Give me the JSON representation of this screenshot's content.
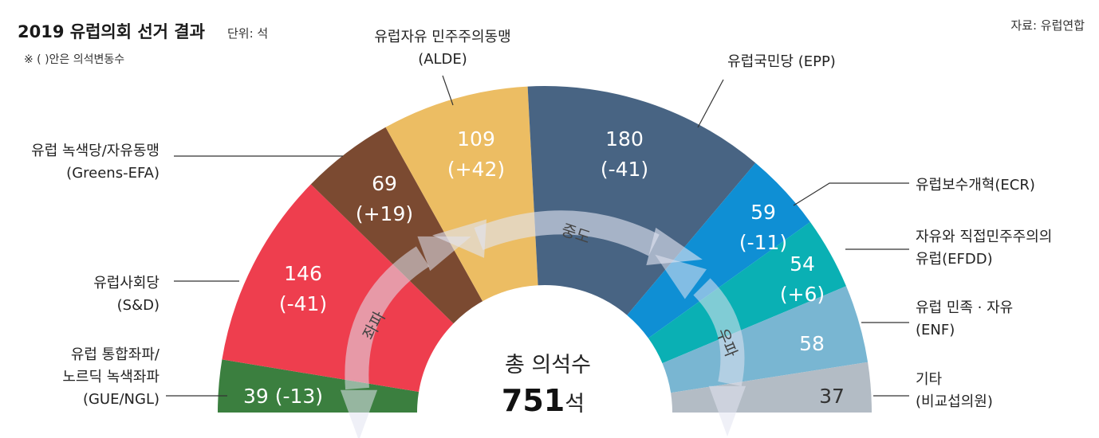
{
  "header": {
    "title": "2019 유럽의회 선거 결과",
    "unit": "단위: 석",
    "note": "※ ( )안은 의석변동수",
    "source": "자료: 유럽연합"
  },
  "center": {
    "label": "총 의석수",
    "total": "751",
    "total_unit": "석"
  },
  "arrows": {
    "left": "좌파",
    "middle": "중도",
    "right": "우파"
  },
  "chart_data": {
    "type": "semicircle-parliament",
    "title": "2019 유럽의회 선거 결과",
    "unit": "석",
    "total": 751,
    "parties": [
      {
        "id": "gue",
        "label_lines": [
          "유럽 통합좌파/",
          "노르딕 녹색좌파",
          "(GUE/NGL)"
        ],
        "seats": 39,
        "change": "-13",
        "value_text": "39 (-13)",
        "color": "#3b7f3f"
      },
      {
        "id": "sd",
        "label_lines": [
          "유럽사회당",
          "(S&D)"
        ],
        "seats": 146,
        "change": "-41",
        "value_text": "146",
        "change_text": "(-41)",
        "color": "#ee3e4e"
      },
      {
        "id": "greens",
        "label_lines": [
          "유럽 녹색당/자유동맹",
          "(Greens-EFA)"
        ],
        "seats": 69,
        "change": "+19",
        "value_text": "69",
        "change_text": "(+19)",
        "color": "#7b4a31"
      },
      {
        "id": "alde",
        "label_lines": [
          "유럽자유 민주주의동맹",
          "(ALDE)"
        ],
        "seats": 109,
        "change": "+42",
        "value_text": "109",
        "change_text": "(+42)",
        "color": "#ecbd63"
      },
      {
        "id": "epp",
        "label_lines": [
          "유럽국민당 (EPP)"
        ],
        "seats": 180,
        "change": "-41",
        "value_text": "180",
        "change_text": "(-41)",
        "color": "#486483"
      },
      {
        "id": "ecr",
        "label_lines": [
          "유럽보수개혁(ECR)"
        ],
        "seats": 59,
        "change": "-11",
        "value_text": "59",
        "change_text": "(-11)",
        "color": "#0f8fd4"
      },
      {
        "id": "efdd",
        "label_lines": [
          "자유와 직접민주주의의",
          "유럽(EFDD)"
        ],
        "seats": 54,
        "change": "+6",
        "value_text": "54",
        "change_text": "(+6)",
        "color": "#0ab0b4"
      },
      {
        "id": "enf",
        "label_lines": [
          "유럽 민족 · 자유",
          "(ENF)"
        ],
        "seats": 58,
        "change": "",
        "value_text": "58",
        "change_text": "",
        "color": "#79b6d2"
      },
      {
        "id": "others",
        "label_lines": [
          "기타",
          "(비교섭의원)"
        ],
        "seats": 37,
        "change": "",
        "value_text": "37",
        "change_text": "",
        "color": "#b3bcc5"
      }
    ]
  }
}
